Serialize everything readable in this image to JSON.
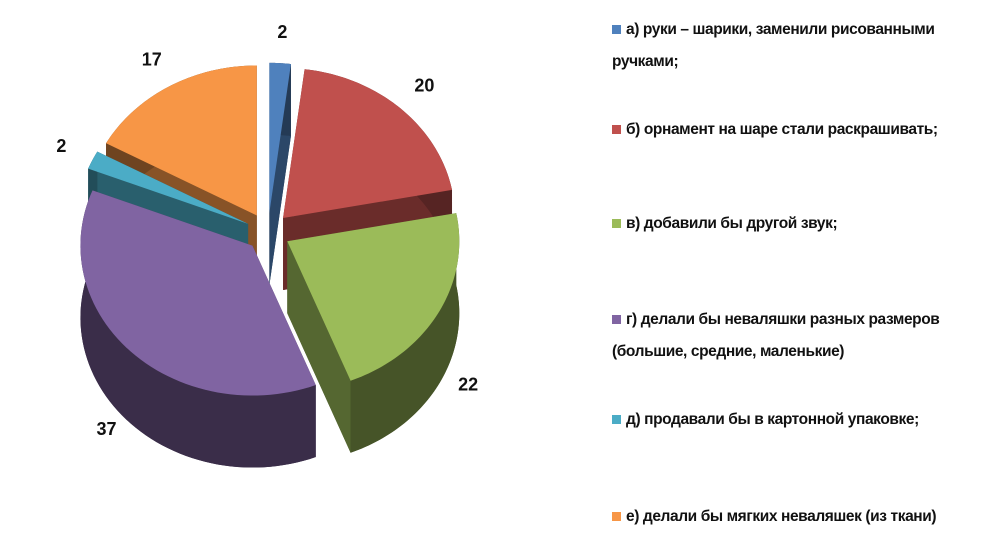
{
  "chart_data": {
    "type": "pie3d",
    "categories": [
      "а)   руки – шарики, заменили рисованными ручками;",
      "б)  орнамент на шаре стали раскрашивать;",
      "в)  добавили бы другой звук;",
      "г)   делали бы неваляшки разных размеров (большие, средние, маленькие)",
      "д)  продавали бы в картонной упаковке;",
      "е) делали бы мягких неваляшек (из ткани)"
    ],
    "values": [
      2,
      20,
      22,
      37,
      2,
      17
    ],
    "colors": [
      "#4f81bd",
      "#c0504d",
      "#9bbb59",
      "#8064a2",
      "#4bacc6",
      "#f79646"
    ],
    "legend": "right"
  }
}
